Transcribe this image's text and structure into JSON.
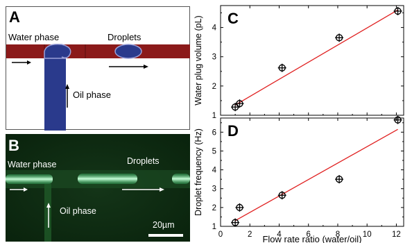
{
  "figure": {
    "panel_a": {
      "label": "A",
      "water_phase": "Water phase",
      "droplets": "Droplets",
      "oil_phase": "Oil phase",
      "colors": {
        "channel": "#8b1a1a",
        "fluid": "#2a3a8c",
        "outline": "#9aa0d8"
      }
    },
    "panel_b": {
      "label": "B",
      "water_phase": "Water phase",
      "droplets": "Droplets",
      "oil_phase": "Oil phase",
      "scale_bar": "20µm",
      "colors": {
        "background": "#0f2a12",
        "streak": "#aef2c4"
      }
    },
    "shared_xlabel": "Flow rate ratio (water/oil)"
  },
  "chart_data": [
    {
      "label": "C",
      "type": "scatter",
      "ylabel": "Water plug volume (pL)",
      "xlabel": "",
      "xlim": [
        0,
        12.5
      ],
      "ylim": [
        1,
        4.75
      ],
      "xticks": [
        0,
        2,
        4,
        6,
        8,
        10,
        12
      ],
      "yticks": [
        1,
        2,
        3,
        4
      ],
      "ytick_labels": [
        "1",
        "2",
        "3",
        "4"
      ],
      "points": [
        {
          "x": 1.0,
          "y": 1.28
        },
        {
          "x": 1.3,
          "y": 1.4
        },
        {
          "x": 4.2,
          "y": 2.62
        },
        {
          "x": 8.1,
          "y": 3.65
        },
        {
          "x": 12.1,
          "y": 4.56
        }
      ],
      "fit_line": {
        "x": [
          1.0,
          12.1
        ],
        "y": [
          1.35,
          4.6
        ]
      },
      "marker": "circle-cross",
      "colors": {
        "points": "#000000",
        "fit": "#e02020"
      }
    },
    {
      "label": "D",
      "type": "scatter",
      "ylabel": "Droplet frequency (Hz)",
      "xlabel": "Flow rate ratio (water/oil)",
      "xlim": [
        0,
        12.5
      ],
      "ylim": [
        1,
        6.75
      ],
      "xticks": [
        0,
        2,
        4,
        6,
        8,
        10,
        12
      ],
      "xtick_labels": [
        "0",
        "2",
        "4",
        "6",
        "8",
        "10",
        "12"
      ],
      "yticks": [
        1,
        2,
        3,
        4,
        5,
        6
      ],
      "ytick_labels": [
        "1",
        "2",
        "3",
        "4",
        "5",
        "6"
      ],
      "points": [
        {
          "x": 1.0,
          "y": 1.2
        },
        {
          "x": 1.3,
          "y": 2.0
        },
        {
          "x": 4.2,
          "y": 2.65
        },
        {
          "x": 8.1,
          "y": 3.5
        },
        {
          "x": 12.1,
          "y": 6.65
        }
      ],
      "fit_line": {
        "x": [
          1.0,
          12.1
        ],
        "y": [
          1.3,
          6.15
        ]
      },
      "marker": "circle-cross",
      "colors": {
        "points": "#000000",
        "fit": "#e02020"
      }
    }
  ]
}
